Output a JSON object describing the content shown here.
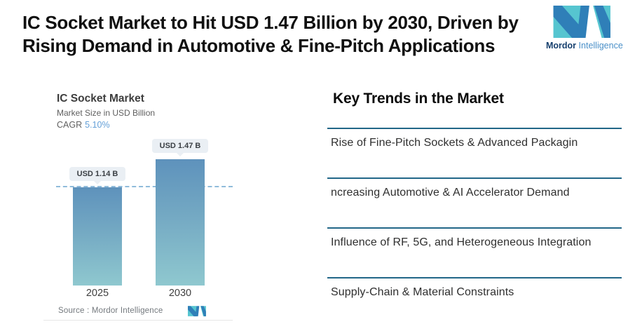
{
  "header": {
    "title_line1": "IC Socket Market to Hit USD 1.47 Billion by 2030, Driven by",
    "title_line2": "Rising Demand in Automotive & Fine-Pitch Applications",
    "logo": {
      "word_primary": "Mordor",
      "word_secondary": "Intelligence",
      "color_primary": "#17406e",
      "color_secondary": "#4a90c8",
      "mark_teal": "#56c5d0",
      "mark_blue": "#2f7fb8"
    }
  },
  "chart": {
    "title": "IC Socket Market",
    "subtitle": "Market Size in USD Billion",
    "cagr_label": "CAGR",
    "cagr_value": "5.10%",
    "cagr_value_color": "#64a0d8",
    "source_label": "Source :  Mordor Intelligence",
    "bar_gradient_top": "#5e92bc",
    "bar_gradient_bottom": "#8fc8cf",
    "dashed_line_color": "#90bcdb",
    "callout_bg": "#eaeff4"
  },
  "chart_data": {
    "type": "bar",
    "title": "IC Socket Market",
    "ylabel": "Market Size in USD Billion",
    "cagr": "5.10%",
    "categories": [
      "2025",
      "2030"
    ],
    "values": [
      1.14,
      1.47
    ],
    "value_labels": [
      "USD 1.14 B",
      "USD 1.47 B"
    ],
    "ylim": [
      0,
      1.47
    ],
    "reference_line": 1.14,
    "grid": false,
    "legend": false
  },
  "trends": {
    "heading": "Key Trends in the Market",
    "divider_color": "#226788",
    "items": [
      "Rise of Fine-Pitch Sockets & Advanced Packagin",
      "ncreasing Automotive & AI Accelerator Demand",
      "Influence of RF, 5G, and Heterogeneous Integration",
      "Supply-Chain & Material Constraints"
    ]
  }
}
